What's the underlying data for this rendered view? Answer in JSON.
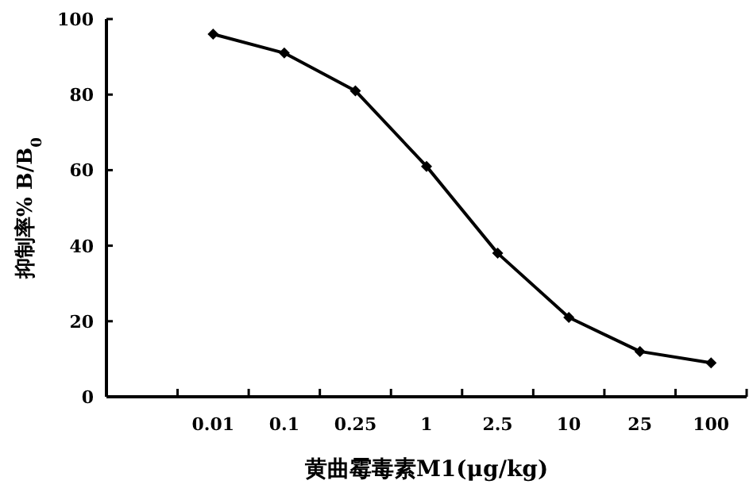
{
  "chart_data": {
    "type": "line",
    "xlabel": "黄曲霉毒素M1(μg/kg)",
    "ylabel": "抑制率% B/B$_{0}$",
    "categories": [
      null,
      "0.01",
      "0.1",
      "0.25",
      "1",
      "2.5",
      "10",
      "25",
      "100"
    ],
    "series": [
      {
        "color": "#000000",
        "values": [
          null,
          96,
          91,
          81,
          61,
          38,
          21,
          12,
          9
        ]
      }
    ],
    "ylim": [
      0,
      100
    ],
    "yticks": [
      0,
      20,
      40,
      60,
      80,
      100
    ],
    "grid": false,
    "marker": "diamond",
    "line_style": "solid"
  }
}
